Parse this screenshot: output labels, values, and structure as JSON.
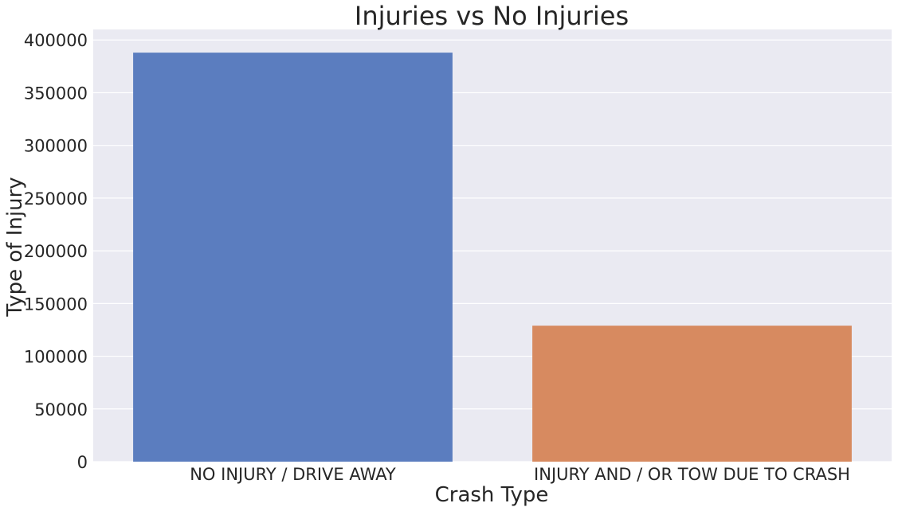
{
  "chart_data": {
    "type": "bar",
    "title": "Injuries vs No Injuries",
    "xlabel": "Crash Type",
    "ylabel": "Type of Injury",
    "categories": [
      "NO INJURY / DRIVE AWAY",
      "INJURY AND / OR TOW DUE TO CRASH"
    ],
    "values": [
      388000,
      129000
    ],
    "colors": [
      "#5b7dbf",
      "#d78a60"
    ],
    "ylim": [
      0,
      410000
    ],
    "yticks": [
      0,
      50000,
      100000,
      150000,
      200000,
      250000,
      300000,
      350000,
      400000
    ],
    "grid": true,
    "legend": "none"
  },
  "style": {
    "plot_background": "#eaeaf2",
    "grid_color": "#ffffff",
    "text_color": "#262626"
  }
}
